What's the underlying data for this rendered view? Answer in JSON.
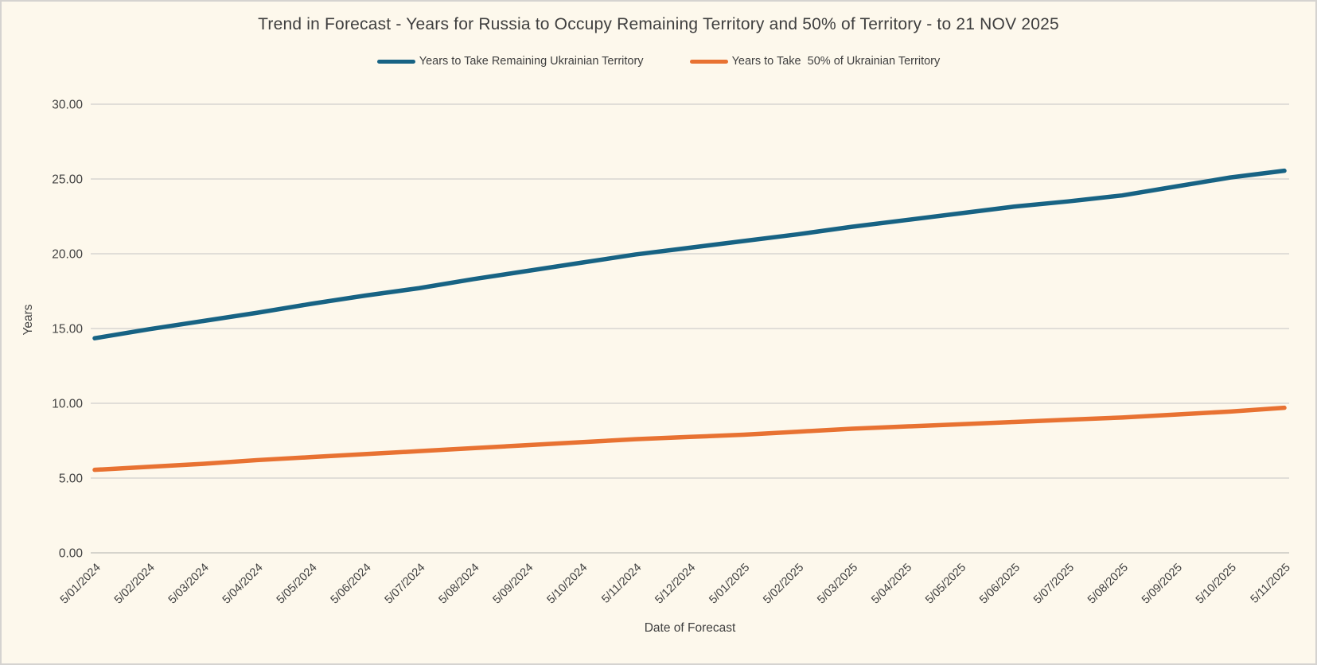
{
  "window": {
    "background_color": "#FDF8EC",
    "border_color": "#D5D3D0",
    "gridline_color": "#D8D6D1",
    "axis_line_color": "#C9C7C2",
    "text_color": "#404040"
  },
  "chart_data": {
    "type": "line",
    "title": "Trend in Forecast - Years for Russia to Occupy Remaining Territory and 50% of Territory - to 21 NOV 2025",
    "xlabel": "Date of Forecast",
    "ylabel": "Years",
    "ylim": [
      0,
      30
    ],
    "y_ticks": [
      0,
      5,
      10,
      15,
      20,
      25,
      30
    ],
    "y_tick_format": "0.00",
    "grid": true,
    "legend_position": "top",
    "categories": [
      "5/01/2024",
      "5/02/2024",
      "5/03/2024",
      "5/04/2024",
      "5/05/2024",
      "5/06/2024",
      "5/07/2024",
      "5/08/2024",
      "5/09/2024",
      "5/10/2024",
      "5/11/2024",
      "5/12/2024",
      "5/01/2025",
      "5/02/2025",
      "5/03/2025",
      "5/04/2025",
      "5/05/2025",
      "5/06/2025",
      "5/07/2025",
      "5/08/2025",
      "5/09/2025",
      "5/10/2025",
      "5/11/2025"
    ],
    "series": [
      {
        "name": "Years to Take Remaining Ukrainian Territory",
        "color": "#176384",
        "values": [
          14.35,
          14.95,
          15.5,
          16.05,
          16.65,
          17.2,
          17.7,
          18.3,
          18.85,
          19.4,
          19.95,
          20.4,
          20.85,
          21.3,
          21.8,
          22.25,
          22.7,
          23.15,
          23.5,
          23.9,
          24.5,
          25.1,
          25.55
        ]
      },
      {
        "name": "Years to Take  50% of Ukrainian Territory",
        "color": "#E87232",
        "values": [
          5.55,
          5.75,
          5.95,
          6.2,
          6.4,
          6.6,
          6.8,
          7.0,
          7.2,
          7.4,
          7.6,
          7.75,
          7.9,
          8.1,
          8.3,
          8.45,
          8.6,
          8.75,
          8.9,
          9.05,
          9.25,
          9.45,
          9.7
        ]
      }
    ]
  }
}
